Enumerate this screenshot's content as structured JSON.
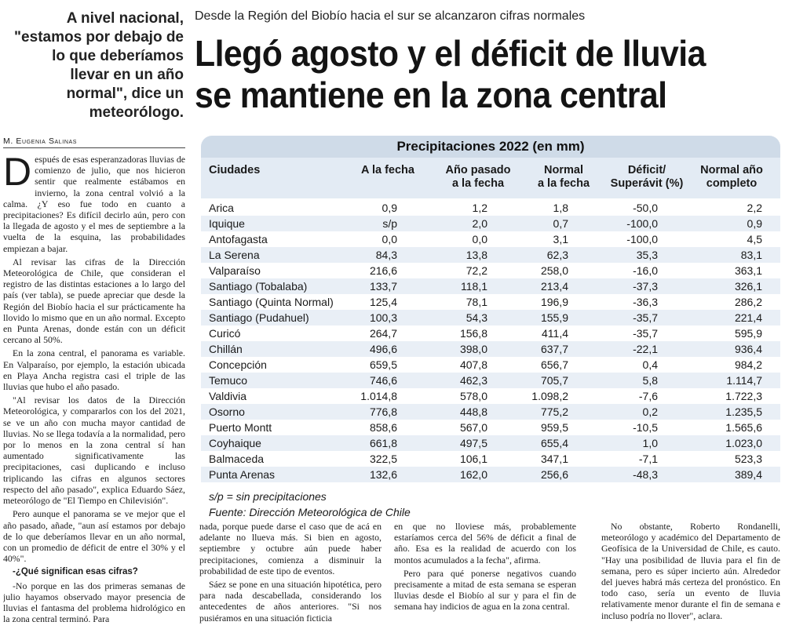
{
  "pullquote": "A nivel nacional, \"estamos por debajo de lo que deberíamos llevar en un año normal\", dice un meteorólogo.",
  "kicker": "Desde la Región del Biobío hacia el sur se alcanzaron cifras normales",
  "headline_line1": "Llegó agosto y el déficit de lluvia",
  "headline_line2": "se mantiene en la zona central",
  "byline": "M. Eugenia Salinas",
  "col1": {
    "dropcap": "D",
    "p1": "espués de esas esperanzadoras lluvias de comienzo de julio, que nos hicieron sentir que realmente estábamos en invierno, la zona central volvió a la calma. ¿Y eso fue todo en cuanto a precipitaciones? Es difícil decirlo aún, pero con la llegada de agosto y el mes de septiembre a la vuelta de la esquina, las probabilidades empiezan a bajar.",
    "p2": "Al revisar las cifras de la Dirección Meteorológica de Chile, que consideran el registro de las distintas estaciones a lo largo del país (ver tabla), se puede apreciar que desde la Región del Biobío hacia el sur prácticamente ha llovido lo mismo que en un año normal. Excepto en Punta Arenas, donde están con un déficit cercano al 50%.",
    "p3": "En la zona central, el panorama es variable. En Valparaíso, por ejemplo, la estación ubicada en Playa Ancha registra casi el triple de las lluvias que hubo el año pasado.",
    "p4": "\"Al revisar los datos de la Dirección Meteorológica, y compararlos con los del 2021, se ve un año con mucha mayor cantidad de lluvias. No se llega todavía a la normalidad, pero por lo menos en la zona central sí han aumentado significativamente las precipitaciones, casi duplicando e incluso triplicando las cifras en algunos sectores respecto del año pasado\", explica Eduardo Sáez, meteorólogo de \"El Tiempo en Chilevisión\".",
    "p5": "Pero aunque el panorama se ve mejor que el año pasado, añade, \"aun así estamos por debajo de lo que deberíamos llevar en un año normal, con un promedio de déficit de entre el 30% y el 40%\".",
    "q": "-¿Qué significan esas cifras?",
    "p6": "-No porque en las dos primeras semanas de julio hayamos observado mayor presencia de lluvias el fantasma del problema hidrológico en la zona central terminó. Para"
  },
  "col2": {
    "p1": "nada, porque puede darse el caso que de acá en adelante no llueva más. Si bien en agosto, septiembre y octubre aún puede haber precipitaciones, comienza a disminuir la probabilidad de este tipo de eventos.",
    "p2": "Sáez se pone en una situación hipotética, pero para nada descabellada, considerando los antecedentes de años anteriores. \"Si nos pusiéramos en una situación ficticia"
  },
  "col3": {
    "p1": "en que no lloviese más, probablemente estaríamos cerca del 56% de déficit a final de año. Esa es la realidad de acuerdo con los montos acumulados a la fecha\", afirma.",
    "p2": "Pero para qué ponerse negativos cuando precisamente a mitad de esta semana se esperan lluvias desde el Biobío al sur y para el fin de semana hay indicios de agua en la zona central."
  },
  "col4": {
    "p1": "No obstante, Roberto Rondanelli, meteorólogo y académico del Departamento de Geofísica de la Universidad de Chile, es cauto. \"Hay una posibilidad de lluvia para el fin de semana, pero es súper incierto aún. Alrededor del jueves habrá más certeza del pronóstico. En todo caso, sería un evento de lluvia relativamente menor durante el fin de semana e incluso podría no llover\", aclara."
  },
  "table": {
    "title": "Precipitaciones 2022 (en mm)",
    "headers": {
      "city": "Ciudades",
      "to_date": "A la fecha",
      "last_year_1": "Año pasado",
      "last_year_2": "a la fecha",
      "normal_1": "Normal",
      "normal_2": "a la fecha",
      "deficit_1": "Déficit/",
      "deficit_2": "Superávit (%)",
      "normal_year_1": "Normal año",
      "normal_year_2": "completo"
    },
    "rows": [
      [
        "Arica",
        "0,9",
        "1,2",
        "1,8",
        "-50,0",
        "2,2"
      ],
      [
        "Iquique",
        "s/p",
        "2,0",
        "0,7",
        "-100,0",
        "0,9"
      ],
      [
        "Antofagasta",
        "0,0",
        "0,0",
        "3,1",
        "-100,0",
        "4,5"
      ],
      [
        "La Serena",
        "84,3",
        "13,8",
        "62,3",
        "35,3",
        "83,1"
      ],
      [
        "Valparaíso",
        "216,6",
        "72,2",
        "258,0",
        "-16,0",
        "363,1"
      ],
      [
        "Santiago (Tobalaba)",
        "133,7",
        "118,1",
        "213,4",
        "-37,3",
        "326,1"
      ],
      [
        "Santiago (Quinta Normal)",
        "125,4",
        "78,1",
        "196,9",
        "-36,3",
        "286,2"
      ],
      [
        "Santiago (Pudahuel)",
        "100,3",
        "54,3",
        "155,9",
        "-35,7",
        "221,4"
      ],
      [
        "Curicó",
        "264,7",
        "156,8",
        "411,4",
        "-35,7",
        "595,9"
      ],
      [
        "Chillán",
        "496,6",
        "398,0",
        "637,7",
        "-22,1",
        "936,4"
      ],
      [
        "Concepción",
        "659,5",
        "407,8",
        "656,7",
        "0,4",
        "984,2"
      ],
      [
        "Temuco",
        "746,6",
        "462,3",
        "705,7",
        "5,8",
        "1.114,7"
      ],
      [
        "Valdivia",
        "1.014,8",
        "578,0",
        "1.098,2",
        "-7,6",
        "1.722,3"
      ],
      [
        "Osorno",
        "776,8",
        "448,8",
        "775,2",
        "0,2",
        "1.235,5"
      ],
      [
        "Puerto Montt",
        "858,6",
        "567,0",
        "959,5",
        "-10,5",
        "1.565,6"
      ],
      [
        "Coyhaique",
        "661,8",
        "497,5",
        "655,4",
        "1,0",
        "1.023,0"
      ],
      [
        "Balmaceda",
        "322,5",
        "106,1",
        "347,1",
        "-7,1",
        "523,3"
      ],
      [
        "Punta Arenas",
        "132,6",
        "162,0",
        "256,6",
        "-48,3",
        "389,4"
      ]
    ],
    "note": "s/p = sin precipitaciones",
    "source": "Fuente: Dirección Meteorológica de Chile"
  }
}
